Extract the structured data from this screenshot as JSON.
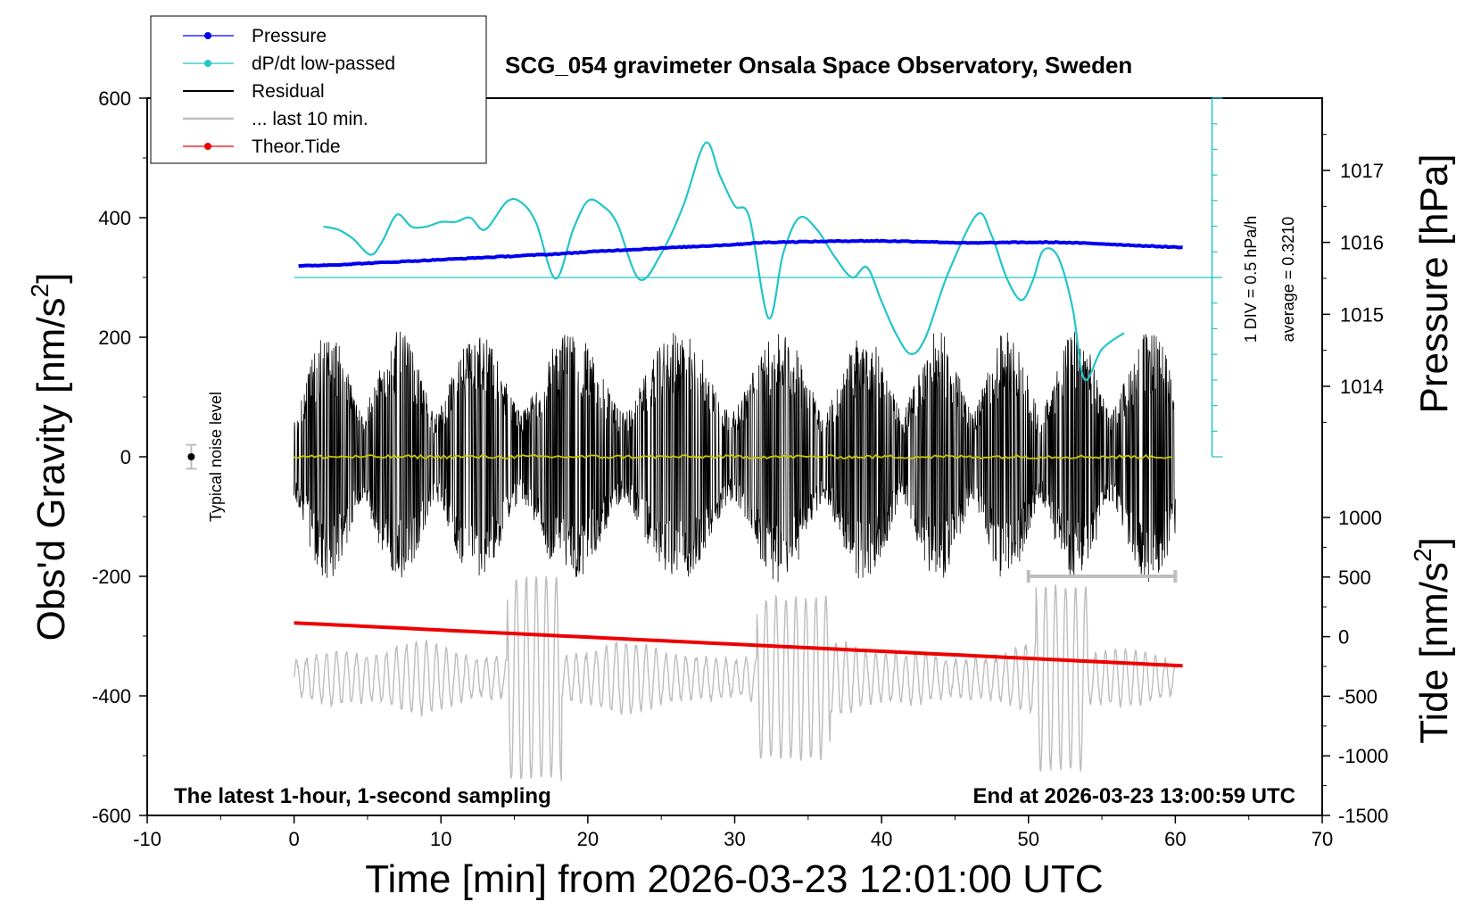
{
  "chart_data": {
    "type": "line",
    "title": "SCG_054 gravimeter Onsala Space Observatory, Sweden",
    "xlabel": "Time [min] from 2026-03-23 12:01:00 UTC",
    "ylabel_left": "Obs'd Gravity [nm/s",
    "ylabel_left_sup": "2",
    "ylabel_left_end": "]",
    "ylabel_right_top": "Pressure [hPa]",
    "ylabel_right_bottom": "Tide [nm/s",
    "ylabel_right_bottom_sup": "2",
    "ylabel_right_bottom_end": "]",
    "xlim": [
      -10,
      70
    ],
    "ylim_left": [
      -600,
      600
    ],
    "ylim_pressure": [
      1013.0,
      1018.0
    ],
    "ylim_tide": [
      -1500,
      1000
    ],
    "x_ticks": [
      -10,
      0,
      10,
      20,
      30,
      40,
      50,
      60,
      70
    ],
    "y_left_ticks": [
      -600,
      -400,
      -200,
      0,
      200,
      400,
      600
    ],
    "y_pressure_ticks": [
      1014,
      1015,
      1016,
      1017
    ],
    "y_tide_ticks": [
      -1500,
      -1000,
      -500,
      0,
      500,
      1000
    ],
    "notes": {
      "left": "The latest 1-hour, 1-second sampling",
      "right": "End at 2026-03-23 13:00:59 UTC"
    },
    "noise_label": "Typical noise level",
    "noise_level": {
      "x": -7,
      "y": 0,
      "halfrange": 20
    },
    "dpdt_scale": {
      "div": "1 DIV = 0.5 hPa/h",
      "average": "average = 0.3210"
    },
    "legend": {
      "position": "top-left",
      "entries": [
        {
          "label": "Pressure",
          "color": "#0000ee",
          "marker": true
        },
        {
          "label": "dP/dt low-passed",
          "color": "#22c5c8",
          "marker": true
        },
        {
          "label": "Residual",
          "color": "#000000",
          "marker": false
        },
        {
          "label": "... last 10 min.",
          "color": "#bdbdbd",
          "marker": false
        },
        {
          "label": "Theor.Tide",
          "color": "#ee0000",
          "marker": true
        }
      ]
    },
    "last10_bracket": {
      "x_start": 50,
      "x_end": 60,
      "y": -200
    },
    "series": [
      {
        "name": "Pressure",
        "axis": "pressure",
        "color": "#0000ee",
        "x": [
          0.3,
          3,
          6,
          9,
          12,
          15,
          18,
          21,
          24,
          27,
          30,
          32,
          35,
          38,
          40,
          43,
          46,
          49,
          52,
          55,
          58,
          60.5
        ],
        "y": [
          1015.67,
          1015.69,
          1015.72,
          1015.75,
          1015.78,
          1015.81,
          1015.84,
          1015.88,
          1015.91,
          1015.94,
          1015.97,
          1016.0,
          1016.01,
          1016.02,
          1016.02,
          1016.01,
          1015.99,
          1016.0,
          1016.0,
          1015.98,
          1015.95,
          1015.93
        ]
      },
      {
        "name": "dP/dt low-passed",
        "axis": "left",
        "color": "#22c5c8",
        "baseline": 300,
        "x": [
          2,
          3,
          4,
          5.2,
          6,
          7,
          8,
          9,
          10,
          11,
          12,
          13,
          14.5,
          15.5,
          16.5,
          17.8,
          19,
          20,
          21,
          22,
          23.5,
          25,
          26.5,
          28,
          29,
          30,
          31,
          32.3,
          33.3,
          34.4,
          35.6,
          36.8,
          38,
          39,
          40,
          41,
          42,
          43,
          44.5,
          46.5,
          47.5,
          48.5,
          49.5,
          50.3,
          51,
          52,
          53,
          53.8,
          55,
          56.5
        ],
        "y": [
          385,
          380,
          365,
          338,
          360,
          405,
          385,
          385,
          393,
          393,
          400,
          380,
          427,
          425,
          390,
          298,
          380,
          428,
          420,
          390,
          297,
          340,
          420,
          525,
          470,
          420,
          400,
          232,
          340,
          400,
          380,
          335,
          300,
          317,
          260,
          205,
          172,
          200,
          305,
          405,
          370,
          300,
          262,
          295,
          345,
          335,
          250,
          130,
          180,
          207
        ]
      },
      {
        "name": "Theor.Tide",
        "axis": "tide",
        "color": "#ee0000",
        "x": [
          0,
          60.5
        ],
        "y": [
          115,
          -245
        ]
      }
    ],
    "residual": {
      "name": "Residual",
      "color": "#000000",
      "x_range": [
        0,
        60
      ],
      "typical_amplitude": 130,
      "max_amplitude": 210
    },
    "smoothed_residual": {
      "color": "#c8c800",
      "level": 0
    },
    "last10min": {
      "name": "... last 10 min.",
      "color": "#bdbdbd",
      "x_range": [
        0,
        60
      ],
      "center": -370,
      "typical_amplitude": 60,
      "max_amplitude": 180
    }
  }
}
